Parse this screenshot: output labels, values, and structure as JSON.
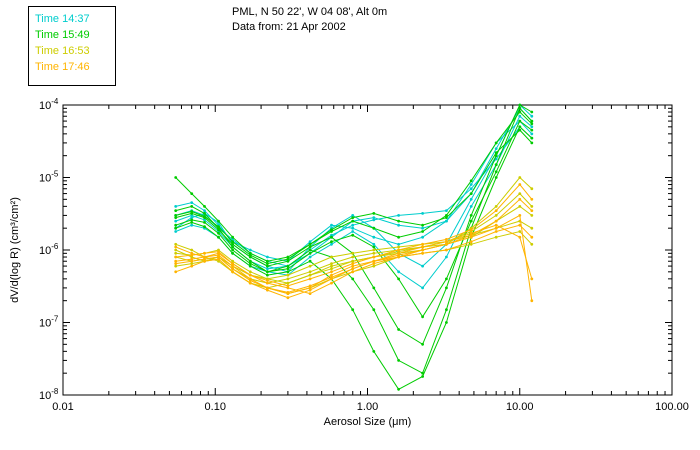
{
  "header": {
    "line1": "PML, N 50 22', W 04 08', Alt 0m",
    "line2": "Data from: 21 Apr 2002"
  },
  "legend": {
    "items": [
      {
        "label": "Time 14:37",
        "color": "#00CDCD"
      },
      {
        "label": "Time 15:49",
        "color": "#00CC00"
      },
      {
        "label": "Time 16:53",
        "color": "#CDCD00"
      },
      {
        "label": "Time 17:46",
        "color": "#FFB400"
      }
    ]
  },
  "chart_data": {
    "type": "line",
    "title": "PML, N 50 22', W 04 08', Alt 0m",
    "subtitle": "Data from: 21 Apr 2002",
    "xlabel": "Aerosol Size (μm)",
    "ylabel": "dV/d(log R) (cm³/cm²)",
    "x_axis": {
      "scale": "log",
      "min": 0.01,
      "max": 100,
      "tick_values": [
        0.01,
        0.1,
        1,
        10,
        100
      ],
      "tick_labels": [
        "0.01",
        "0.10",
        "1.00",
        "10.00",
        "100.00"
      ]
    },
    "y_axis": {
      "scale": "log",
      "min": 1e-08,
      "max": 0.0001,
      "tick_exponents": [
        -8,
        -7,
        -6,
        -5,
        -4
      ]
    },
    "x": [
      0.055,
      0.07,
      0.085,
      0.105,
      0.13,
      0.17,
      0.22,
      0.3,
      0.42,
      0.58,
      0.8,
      1.1,
      1.6,
      2.3,
      3.3,
      4.8,
      7.0,
      10.0,
      12.0
    ],
    "series": [
      {
        "name": "14:37",
        "color": "#00CDCD",
        "y": [
          3e-06,
          3.5e-06,
          3e-06,
          2e-06,
          1.4e-06,
          9e-07,
          7e-07,
          6e-07,
          9e-07,
          1.5e-06,
          2.5e-06,
          2.8e-06,
          2.2e-06,
          2e-06,
          2.5e-06,
          6e-06,
          2.5e-05,
          9e-05,
          6e-05
        ]
      },
      {
        "name": "14:37",
        "color": "#00CDCD",
        "y": [
          2e-06,
          2.8e-06,
          3.2e-06,
          2.4e-06,
          1.2e-06,
          8e-07,
          6e-07,
          5e-07,
          1.1e-06,
          2e-06,
          3e-06,
          2e-06,
          9e-07,
          6e-07,
          1.2e-06,
          5e-06,
          2e-05,
          0.0001,
          7e-05
        ]
      },
      {
        "name": "14:37",
        "color": "#00CDCD",
        "y": [
          4e-06,
          4.5e-06,
          3.5e-06,
          2.2e-06,
          1.3e-06,
          1e-06,
          8e-07,
          7e-07,
          1.3e-06,
          2.2e-06,
          2e-06,
          1.5e-06,
          1.2e-06,
          1.5e-06,
          2.5e-06,
          8e-06,
          3e-05,
          6e-05,
          4e-05
        ]
      },
      {
        "name": "14:37",
        "color": "#00CDCD",
        "y": [
          2.5e-06,
          3e-06,
          2.6e-06,
          1.8e-06,
          1.1e-06,
          7e-07,
          5.5e-07,
          6e-07,
          1e-06,
          1.6e-06,
          2.2e-06,
          2.6e-06,
          3e-06,
          3.2e-06,
          3.5e-06,
          7e-06,
          1.8e-05,
          5e-05,
          3.5e-05
        ]
      },
      {
        "name": "14:37",
        "color": "#00CDCD",
        "y": [
          1.8e-06,
          2.2e-06,
          2e-06,
          1.5e-06,
          9e-07,
          6e-07,
          5e-07,
          4.5e-07,
          8e-07,
          1.2e-06,
          1.8e-06,
          1.2e-06,
          5e-07,
          3e-07,
          8e-07,
          4e-06,
          1.5e-05,
          7e-05,
          5e-05
        ]
      },
      {
        "name": "15:49",
        "color": "#00CC00",
        "y": [
          1e-05,
          6e-06,
          4e-06,
          2.5e-06,
          1.5e-06,
          9e-07,
          7e-07,
          8e-07,
          1.2e-06,
          1.8e-06,
          2.5e-06,
          2e-06,
          1.5e-06,
          1.8e-06,
          3e-06,
          9e-06,
          3e-05,
          8e-05,
          5.5e-05
        ]
      },
      {
        "name": "15:49",
        "color": "#00CC00",
        "y": [
          3.5e-06,
          4e-06,
          3.2e-06,
          2e-06,
          1.1e-06,
          7e-07,
          5e-07,
          6e-07,
          1e-06,
          8e-07,
          4e-07,
          1.5e-07,
          3e-08,
          2e-08,
          1.5e-07,
          2e-06,
          1.5e-05,
          9e-05,
          6e-05
        ]
      },
      {
        "name": "15:49",
        "color": "#00CC00",
        "y": [
          2.8e-06,
          3.2e-06,
          2.8e-06,
          1.9e-06,
          1.2e-06,
          8e-07,
          6e-07,
          7e-07,
          1.1e-06,
          1.5e-06,
          9e-07,
          3e-07,
          8e-08,
          5e-08,
          3e-07,
          3e-06,
          2e-05,
          0.0001,
          8e-05
        ]
      },
      {
        "name": "15:49",
        "color": "#00CC00",
        "y": [
          2.2e-06,
          2.6e-06,
          2.4e-06,
          1.7e-06,
          1e-06,
          6.5e-07,
          5e-07,
          5.5e-07,
          9e-07,
          1.3e-06,
          1.6e-06,
          1.1e-06,
          4e-07,
          1.2e-07,
          4e-07,
          2.5e-06,
          1.2e-05,
          6e-05,
          4.5e-05
        ]
      },
      {
        "name": "15:49",
        "color": "#00CC00",
        "y": [
          3e-06,
          3.4e-06,
          2.9e-06,
          2.1e-06,
          1.3e-06,
          8.5e-07,
          6.5e-07,
          7.5e-07,
          1.2e-06,
          1.9e-06,
          2.8e-06,
          3.2e-06,
          2.5e-06,
          2.2e-06,
          2.8e-06,
          6e-06,
          2.2e-05,
          4.5e-05,
          3e-05
        ]
      },
      {
        "name": "15:49",
        "color": "#00CC00",
        "y": [
          2e-06,
          2.4e-06,
          2.1e-06,
          1.5e-06,
          9e-07,
          6e-07,
          4.5e-07,
          5e-07,
          7e-07,
          4e-07,
          1.5e-07,
          4e-08,
          1.2e-08,
          1.8e-08,
          1e-07,
          1.5e-06,
          1e-05,
          5e-05,
          3.5e-05
        ]
      },
      {
        "name": "16:53",
        "color": "#CDCD00",
        "y": [
          1e-06,
          8e-07,
          7e-07,
          8e-07,
          6e-07,
          4.5e-07,
          4e-07,
          4.5e-07,
          6e-07,
          8e-07,
          9e-07,
          1e-06,
          1.1e-06,
          1.2e-06,
          1.3e-06,
          1.6e-06,
          2e-06,
          2.5e-06,
          2e-06
        ]
      },
      {
        "name": "16:53",
        "color": "#CDCD00",
        "y": [
          8e-07,
          7e-07,
          7.5e-07,
          8e-07,
          5.5e-07,
          4e-07,
          3.5e-07,
          4e-07,
          5e-07,
          6.5e-07,
          8e-07,
          9e-07,
          1e-06,
          1.1e-06,
          1.2e-06,
          1.5e-06,
          2.5e-06,
          4e-06,
          3e-06
        ]
      },
      {
        "name": "16:53",
        "color": "#CDCD00",
        "y": [
          1.2e-06,
          1e-06,
          8e-07,
          7e-07,
          5e-07,
          3.5e-07,
          3e-07,
          3.5e-07,
          4.5e-07,
          6e-07,
          7e-07,
          8e-07,
          9e-07,
          1e-06,
          1.2e-06,
          2e-06,
          4e-06,
          1e-05,
          7e-06
        ]
      },
      {
        "name": "16:53",
        "color": "#CDCD00",
        "y": [
          6e-07,
          6.5e-07,
          7e-07,
          7.5e-07,
          5e-07,
          3.5e-07,
          3e-07,
          2.5e-07,
          3e-07,
          4e-07,
          5e-07,
          6e-07,
          8e-07,
          9e-07,
          1e-06,
          1.2e-06,
          1.5e-06,
          1.8e-06,
          1.2e-06
        ]
      },
      {
        "name": "16:53",
        "color": "#CDCD00",
        "y": [
          9e-07,
          8.5e-07,
          9e-07,
          1e-06,
          7e-07,
          5e-07,
          4e-07,
          3.5e-07,
          4.5e-07,
          5.5e-07,
          7e-07,
          8e-07,
          9.5e-07,
          1.1e-06,
          1.3e-06,
          1.8e-06,
          3e-06,
          6e-06,
          4e-06
        ]
      },
      {
        "name": "17:46",
        "color": "#FFB400",
        "y": [
          7e-07,
          7.5e-07,
          8e-07,
          8.5e-07,
          6e-07,
          4e-07,
          3e-07,
          2.5e-07,
          3e-07,
          4.5e-07,
          6e-07,
          7e-07,
          8e-07,
          9e-07,
          1e-06,
          1.3e-06,
          1.8e-06,
          2.2e-06,
          1.5e-06
        ]
      },
      {
        "name": "17:46",
        "color": "#FFB400",
        "y": [
          1.1e-06,
          9e-07,
          8e-07,
          9e-07,
          6.5e-07,
          4.5e-07,
          3.5e-07,
          3e-07,
          2.5e-07,
          3.5e-07,
          5e-07,
          6.5e-07,
          8e-07,
          1e-06,
          1.2e-06,
          1.6e-06,
          2.5e-06,
          5e-06,
          3.5e-06
        ]
      },
      {
        "name": "17:46",
        "color": "#FFB400",
        "y": [
          5e-07,
          6e-07,
          7e-07,
          7.5e-07,
          5e-07,
          3.5e-07,
          2.8e-07,
          2.2e-07,
          2.8e-07,
          4e-07,
          5.5e-07,
          7e-07,
          9e-07,
          1.1e-06,
          1.3e-06,
          1.7e-06,
          2.2e-06,
          1.5e-06,
          4e-07
        ]
      },
      {
        "name": "17:46",
        "color": "#FFB400",
        "y": [
          8e-07,
          8.5e-07,
          9e-07,
          9.5e-07,
          6.5e-07,
          4.5e-07,
          3.8e-07,
          3.2e-07,
          4e-07,
          5e-07,
          6.5e-07,
          8e-07,
          1e-06,
          1.2e-06,
          1.4e-06,
          1.9e-06,
          3.5e-06,
          8e-06,
          5e-06
        ]
      },
      {
        "name": "17:46",
        "color": "#FFB400",
        "y": [
          6.5e-07,
          7e-07,
          7.5e-07,
          8e-07,
          5.5e-07,
          3.8e-07,
          3e-07,
          2.6e-07,
          3.2e-07,
          4.2e-07,
          5.5e-07,
          7e-07,
          8.5e-07,
          1e-06,
          1.2e-06,
          1.5e-06,
          2e-06,
          3e-06,
          2e-07
        ]
      }
    ]
  }
}
